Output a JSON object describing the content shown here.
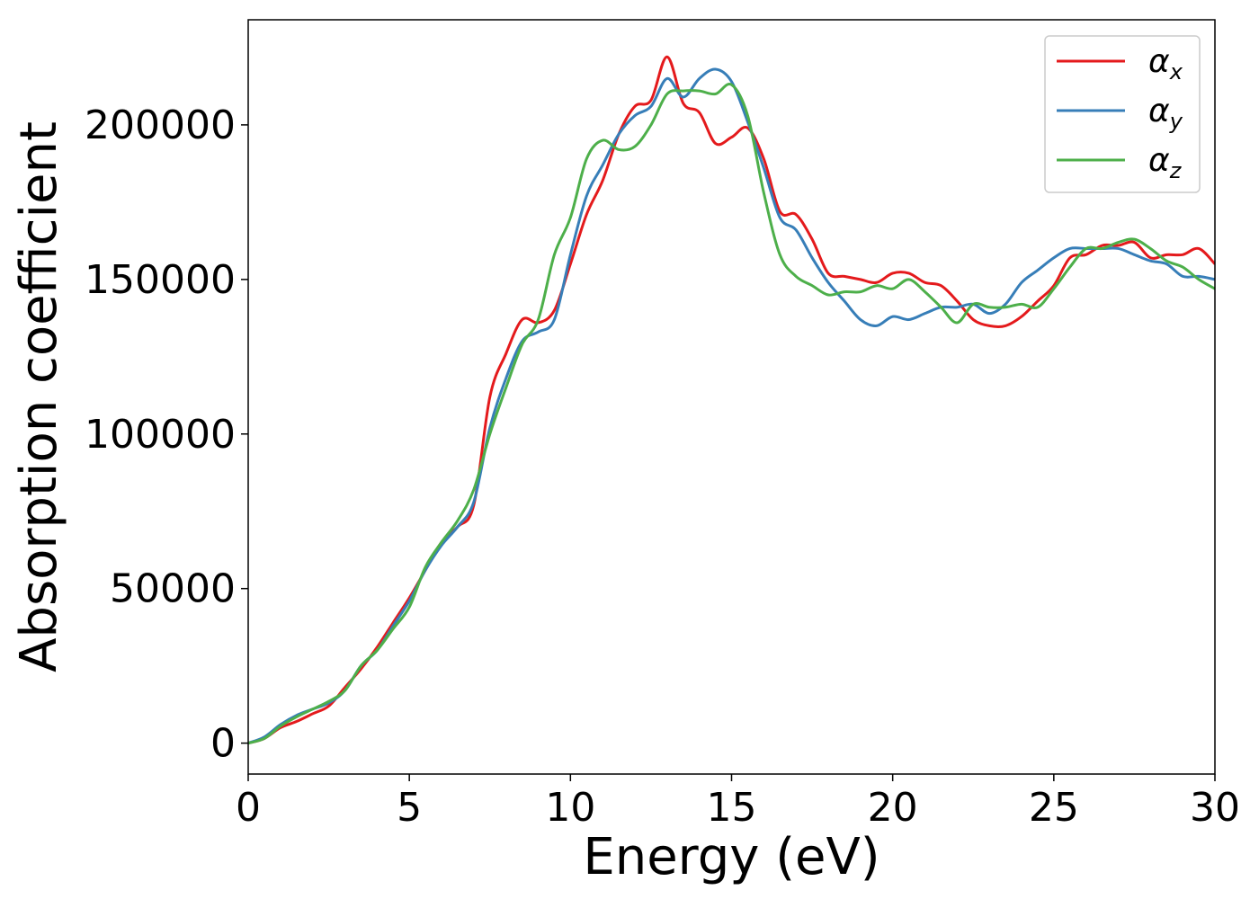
{
  "chart_data": {
    "type": "line",
    "title": "",
    "xlabel": "Energy (eV)",
    "ylabel": "Absorption coefficient",
    "xlim": [
      0,
      30
    ],
    "ylim": [
      -10000,
      234000
    ],
    "xticks": [
      0,
      5,
      10,
      15,
      20,
      25,
      30
    ],
    "yticks": [
      0,
      50000,
      100000,
      150000,
      200000
    ],
    "grid": false,
    "legend_position": "top-right",
    "series": [
      {
        "name": "α",
        "subscript": "x",
        "color": "#e41a1c",
        "x": [
          0,
          0.5,
          1,
          1.5,
          2,
          2.5,
          3,
          3.5,
          4,
          4.5,
          5,
          5.5,
          6,
          6.5,
          7,
          7.5,
          8,
          8.5,
          9,
          9.5,
          10,
          10.5,
          11,
          11.5,
          12,
          12.5,
          13,
          13.5,
          14,
          14.5,
          15,
          15.5,
          16,
          16.5,
          17,
          17.5,
          18,
          18.5,
          19,
          19.5,
          20,
          20.5,
          21,
          21.5,
          22,
          22.5,
          23,
          23.5,
          24,
          24.5,
          25,
          25.5,
          26,
          26.5,
          27,
          27.5,
          28,
          28.5,
          29,
          29.5,
          30
        ],
        "y": [
          0,
          1500,
          5000,
          7000,
          9500,
          12000,
          18000,
          24000,
          31000,
          39000,
          47000,
          56000,
          65000,
          70000,
          77000,
          112000,
          126000,
          137000,
          136000,
          140000,
          155000,
          171000,
          182000,
          197000,
          206000,
          208000,
          222000,
          207000,
          204000,
          194000,
          196000,
          199000,
          189000,
          172000,
          171000,
          163000,
          152000,
          151000,
          150000,
          149000,
          152000,
          152000,
          149000,
          148000,
          143000,
          137000,
          135000,
          135000,
          138000,
          143000,
          148000,
          157000,
          158000,
          161000,
          161000,
          162000,
          157000,
          158000,
          158000,
          160000,
          155000
        ]
      },
      {
        "name": "α",
        "subscript": "y",
        "color": "#377eb8",
        "x": [
          0,
          0.5,
          1,
          1.5,
          2,
          2.5,
          3,
          3.5,
          4,
          4.5,
          5,
          5.5,
          6,
          6.5,
          7,
          7.5,
          8,
          8.5,
          9,
          9.5,
          10,
          10.5,
          11,
          11.5,
          12,
          12.5,
          13,
          13.5,
          14,
          14.5,
          15,
          15.5,
          16,
          16.5,
          17,
          17.5,
          18,
          18.5,
          19,
          19.5,
          20,
          20.5,
          21,
          21.5,
          22,
          22.5,
          23,
          23.5,
          24,
          24.5,
          25,
          25.5,
          26,
          26.5,
          27,
          27.5,
          28,
          28.5,
          29,
          29.5,
          30
        ],
        "y": [
          0,
          2000,
          6000,
          9000,
          11000,
          13000,
          17000,
          25000,
          30000,
          38000,
          46000,
          56000,
          64000,
          70000,
          78000,
          102000,
          118000,
          130000,
          133000,
          137000,
          158000,
          177000,
          187000,
          197000,
          203000,
          206000,
          215000,
          209000,
          215000,
          218000,
          214000,
          201000,
          186000,
          170000,
          166000,
          157000,
          149000,
          143000,
          137000,
          135000,
          138000,
          137000,
          139000,
          141000,
          141000,
          142000,
          139000,
          142000,
          149000,
          153000,
          157000,
          160000,
          160000,
          160000,
          160000,
          158000,
          156000,
          155000,
          151000,
          151000,
          150000
        ]
      },
      {
        "name": "α",
        "subscript": "z",
        "color": "#4daf4a",
        "x": [
          0,
          0.5,
          1,
          1.5,
          2,
          2.5,
          3,
          3.5,
          4,
          4.5,
          5,
          5.5,
          6,
          6.5,
          7,
          7.5,
          8,
          8.5,
          9,
          9.5,
          10,
          10.5,
          11,
          11.5,
          12,
          12.5,
          13,
          13.5,
          14,
          14.5,
          15,
          15.5,
          16,
          16.5,
          17,
          17.5,
          18,
          18.5,
          19,
          19.5,
          20,
          20.5,
          21,
          21.5,
          22,
          22.5,
          23,
          23.5,
          24,
          24.5,
          25,
          25.5,
          26,
          26.5,
          27,
          27.5,
          28,
          28.5,
          29,
          29.5,
          30
        ],
        "y": [
          0,
          1500,
          5500,
          8500,
          11000,
          13500,
          17000,
          25000,
          30000,
          37000,
          44000,
          57000,
          65000,
          72000,
          82000,
          100000,
          115000,
          129000,
          137000,
          158000,
          170000,
          189000,
          195000,
          192000,
          193000,
          200000,
          210000,
          211000,
          211000,
          210000,
          213000,
          203000,
          178000,
          158000,
          151000,
          148000,
          145000,
          146000,
          146000,
          148000,
          147000,
          150000,
          146000,
          141000,
          136000,
          142000,
          141000,
          141000,
          142000,
          141000,
          147000,
          154000,
          160000,
          160000,
          162000,
          163000,
          160000,
          156000,
          154000,
          150000,
          147000
        ]
      }
    ]
  }
}
